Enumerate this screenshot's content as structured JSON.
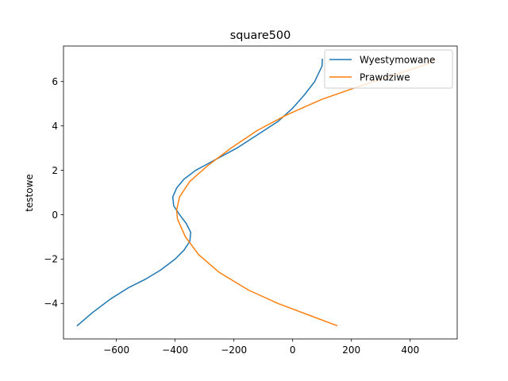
{
  "chart_data": {
    "type": "line",
    "title": "square500",
    "xlabel": "",
    "ylabel": "testowe",
    "xlim": [
      -780,
      560
    ],
    "ylim": [
      -5.6,
      7.6
    ],
    "xticks": [
      -600,
      -400,
      -200,
      0,
      200,
      400
    ],
    "yticks": [
      -4,
      -2,
      0,
      2,
      4,
      6
    ],
    "grid": false,
    "legend_position": "top-right",
    "series": [
      {
        "name": "Wyestymowane",
        "color": "#1f77b4",
        "points": [
          [
            -733,
            -5.0
          ],
          [
            -680,
            -4.4
          ],
          [
            -620,
            -3.8
          ],
          [
            -560,
            -3.3
          ],
          [
            -500,
            -2.9
          ],
          [
            -450,
            -2.5
          ],
          [
            -400,
            -2.0
          ],
          [
            -370,
            -1.6
          ],
          [
            -350,
            -1.2
          ],
          [
            -347,
            -0.8
          ],
          [
            -362,
            -0.4
          ],
          [
            -385,
            0.0
          ],
          [
            -405,
            0.4
          ],
          [
            -408,
            0.8
          ],
          [
            -395,
            1.2
          ],
          [
            -370,
            1.6
          ],
          [
            -330,
            2.0
          ],
          [
            -260,
            2.5
          ],
          [
            -190,
            3.0
          ],
          [
            -120,
            3.6
          ],
          [
            -50,
            4.2
          ],
          [
            0,
            4.8
          ],
          [
            40,
            5.4
          ],
          [
            75,
            6.0
          ],
          [
            100,
            6.7
          ],
          [
            101,
            7.0
          ]
        ]
      },
      {
        "name": "Prawdziwe",
        "color": "#ff7f0e",
        "points": [
          [
            150,
            -5.0
          ],
          [
            50,
            -4.5
          ],
          [
            -50,
            -4.0
          ],
          [
            -150,
            -3.4
          ],
          [
            -250,
            -2.6
          ],
          [
            -320,
            -1.8
          ],
          [
            -365,
            -1.0
          ],
          [
            -392,
            -0.2
          ],
          [
            -395,
            0.2
          ],
          [
            -385,
            0.8
          ],
          [
            -350,
            1.5
          ],
          [
            -290,
            2.2
          ],
          [
            -210,
            3.0
          ],
          [
            -120,
            3.8
          ],
          [
            -20,
            4.5
          ],
          [
            100,
            5.2
          ],
          [
            230,
            5.8
          ],
          [
            370,
            6.4
          ],
          [
            460,
            6.8
          ],
          [
            480,
            7.0
          ]
        ]
      }
    ]
  }
}
